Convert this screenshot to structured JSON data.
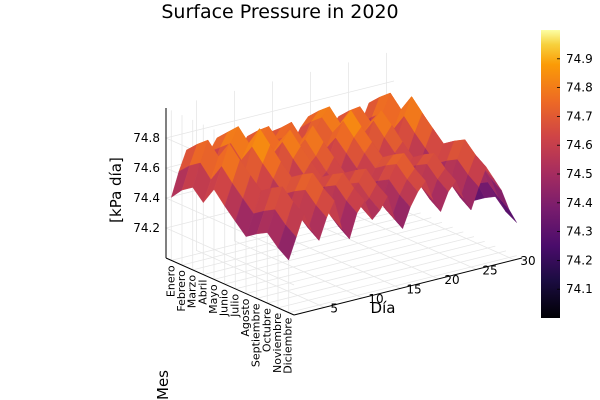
{
  "chart_data": {
    "type": "surface",
    "title": "Surface Pressure in 2020",
    "xlabel": "Día",
    "ylabel": "Mes",
    "zlabel": "[kPa día]",
    "x_ticks": [
      5,
      10,
      15,
      20,
      25,
      30
    ],
    "x_range": [
      1,
      31
    ],
    "y_categories": [
      "Enero",
      "Febrero",
      "Marzo",
      "Abril",
      "Mayo",
      "Junio",
      "Julio",
      "Agosto",
      "Septiembre",
      "Octubre",
      "Noviembre",
      "Diciembre"
    ],
    "z_ticks": [
      74.2,
      74.4,
      74.6,
      74.8
    ],
    "z_range": [
      74.0,
      75.0
    ],
    "colorbar": {
      "ticks": [
        74.1,
        74.2,
        74.3,
        74.4,
        74.5,
        74.6,
        74.7,
        74.8,
        74.9
      ],
      "range": [
        74.0,
        75.0
      ],
      "colormap": "inferno"
    },
    "colors": {
      "dark": "#000004",
      "purple": "#56106e",
      "magenta": "#bb3754",
      "orange": "#f98c0a",
      "yellow": "#fcffa4"
    },
    "series": [
      {
        "values": [
          [
            74.42,
            74.58,
            74.71,
            74.6,
            74.52,
            74.66,
            74.74,
            74.55,
            74.48,
            74.63,
            74.7,
            74.57,
            74.61,
            74.69,
            74.52,
            74.45,
            74.58,
            74.67,
            74.73,
            74.59,
            74.5,
            74.62,
            74.68,
            74.56,
            74.47,
            74.6,
            74.72,
            74.64,
            74.55,
            74.4,
            74.3
          ],
          [
            74.5,
            74.65,
            74.78,
            74.66,
            74.58,
            74.72,
            74.81,
            74.62,
            74.54,
            74.7,
            74.77,
            74.63,
            74.68,
            74.75,
            74.59,
            74.52,
            74.64,
            74.74,
            74.8,
            74.66,
            74.57,
            74.69,
            74.75,
            74.62,
            74.53,
            74.67,
            74.79,
            74.7,
            74.61,
            74.47,
            74.36
          ],
          [
            74.55,
            74.7,
            74.84,
            74.71,
            74.62,
            74.78,
            74.88,
            74.67,
            74.58,
            74.75,
            74.83,
            74.69,
            74.73,
            74.82,
            74.64,
            74.57,
            74.7,
            74.8,
            74.86,
            74.72,
            74.62,
            74.75,
            74.81,
            74.68,
            74.58,
            74.73,
            74.85,
            74.76,
            74.66,
            74.52,
            74.4
          ],
          [
            74.48,
            74.62,
            74.76,
            74.64,
            74.56,
            74.7,
            74.8,
            74.6,
            74.51,
            74.68,
            74.76,
            74.62,
            74.66,
            74.74,
            74.57,
            74.5,
            74.63,
            74.73,
            74.78,
            74.64,
            74.55,
            74.67,
            74.74,
            74.61,
            74.51,
            74.65,
            74.77,
            74.68,
            74.59,
            74.45,
            74.34
          ],
          [
            74.6,
            74.74,
            74.88,
            74.75,
            74.66,
            74.82,
            74.93,
            74.72,
            74.63,
            74.8,
            74.87,
            74.73,
            74.78,
            74.86,
            74.69,
            74.61,
            74.74,
            74.84,
            74.9,
            74.76,
            74.66,
            74.79,
            74.85,
            74.72,
            74.62,
            74.77,
            74.89,
            74.8,
            74.7,
            74.56,
            74.44
          ],
          [
            74.52,
            74.66,
            74.8,
            74.68,
            74.59,
            74.74,
            74.85,
            74.64,
            74.55,
            74.72,
            74.79,
            74.65,
            74.7,
            74.78,
            74.61,
            74.54,
            74.67,
            74.76,
            74.82,
            74.68,
            74.59,
            74.71,
            74.78,
            74.64,
            74.55,
            74.69,
            74.81,
            74.72,
            74.63,
            74.49,
            74.37
          ],
          [
            74.45,
            74.59,
            74.73,
            74.61,
            74.53,
            74.67,
            74.77,
            74.57,
            74.49,
            74.65,
            74.72,
            74.58,
            74.63,
            74.71,
            74.54,
            74.47,
            74.6,
            74.69,
            74.75,
            74.61,
            74.52,
            74.64,
            74.7,
            74.57,
            74.48,
            74.62,
            74.74,
            74.65,
            74.56,
            74.42,
            74.31
          ],
          [
            74.38,
            74.52,
            74.66,
            74.54,
            74.46,
            74.6,
            74.7,
            74.5,
            74.42,
            74.58,
            74.65,
            74.51,
            74.56,
            74.64,
            74.47,
            74.4,
            74.53,
            74.62,
            74.68,
            74.54,
            74.45,
            74.57,
            74.63,
            74.5,
            74.41,
            74.55,
            74.67,
            74.58,
            74.49,
            74.35,
            74.24
          ],
          [
            74.43,
            74.57,
            74.71,
            74.59,
            74.51,
            74.65,
            74.75,
            74.55,
            74.47,
            74.63,
            74.7,
            74.56,
            74.61,
            74.69,
            74.52,
            74.45,
            74.58,
            74.67,
            74.73,
            74.59,
            74.5,
            74.62,
            74.68,
            74.55,
            74.46,
            74.6,
            74.72,
            74.63,
            74.54,
            74.4,
            74.29
          ],
          [
            74.47,
            74.61,
            74.75,
            74.63,
            74.55,
            74.69,
            74.79,
            74.59,
            74.51,
            74.67,
            74.74,
            74.6,
            74.65,
            74.73,
            74.56,
            74.49,
            74.62,
            74.71,
            74.77,
            74.63,
            74.54,
            74.66,
            74.72,
            74.59,
            74.5,
            74.64,
            74.76,
            74.67,
            74.58,
            74.44,
            74.33
          ],
          [
            74.4,
            74.54,
            74.68,
            74.56,
            74.48,
            74.62,
            74.72,
            74.52,
            74.44,
            74.6,
            74.67,
            74.53,
            74.58,
            74.66,
            74.49,
            74.42,
            74.55,
            74.64,
            74.7,
            74.56,
            74.47,
            74.59,
            74.65,
            74.52,
            74.43,
            74.57,
            74.69,
            74.6,
            74.51,
            74.37,
            74.26
          ],
          [
            74.35,
            74.49,
            74.63,
            74.51,
            74.43,
            74.57,
            74.67,
            74.47,
            74.39,
            74.55,
            74.62,
            74.48,
            74.53,
            74.61,
            74.44,
            74.37,
            74.5,
            74.59,
            74.65,
            74.51,
            74.42,
            74.54,
            74.6,
            74.47,
            74.38,
            74.52,
            74.64,
            74.55,
            74.46,
            74.32,
            74.22
          ]
        ]
      }
    ]
  }
}
